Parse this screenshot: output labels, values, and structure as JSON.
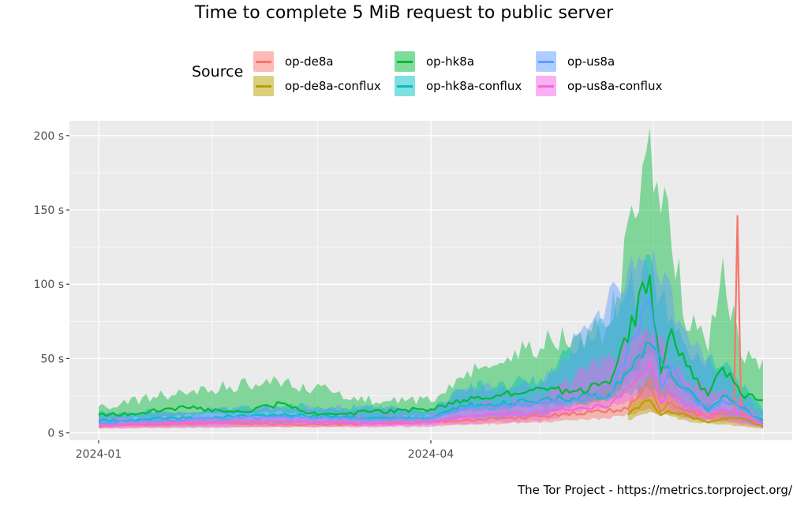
{
  "chart_data": {
    "type": "line",
    "title": "Time to complete 5 MiB request to public server",
    "legend_title": "Source",
    "legend_position": "top",
    "caption": "The Tor Project - https://metrics.torproject.org/",
    "xlabel": "",
    "ylabel": "",
    "x_ticks": [
      {
        "date": "2024-01-01",
        "label": "2024-01"
      },
      {
        "date": "2024-04-01",
        "label": "2024-04"
      }
    ],
    "x_range": [
      "2023-12-24",
      "2024-07-09"
    ],
    "y_ticks": [
      0,
      50,
      100,
      150,
      200
    ],
    "y_tick_suffix": " s",
    "ylim": [
      -5,
      210
    ],
    "grid": true,
    "series_note": "Each series: median time (line) with 25th-75th percentile band; values in seconds; x in days starting 2024-01-01",
    "series": [
      {
        "name": "op-de8a",
        "color": "#F8766D",
        "start_date": "2024-01-01",
        "end_date": "2024-07-01",
        "points": [
          [
            "2024-01-01",
            4.5
          ],
          [
            "2024-01-15",
            5.5
          ],
          [
            "2024-02-01",
            6.5
          ],
          [
            "2024-02-15",
            6
          ],
          [
            "2024-03-01",
            5.5
          ],
          [
            "2024-03-15",
            6
          ],
          [
            "2024-04-01",
            7
          ],
          [
            "2024-04-15",
            9
          ],
          [
            "2024-05-01",
            11
          ],
          [
            "2024-05-15",
            14
          ],
          [
            "2024-05-25",
            16
          ],
          [
            "2024-05-31",
            35
          ],
          [
            "2024-06-03",
            14
          ],
          [
            "2024-06-05",
            20
          ],
          [
            "2024-06-10",
            15
          ],
          [
            "2024-06-16",
            10
          ],
          [
            "2024-06-20",
            13
          ],
          [
            "2024-06-23",
            14
          ],
          [
            "2024-06-24",
            146
          ],
          [
            "2024-06-25",
            14
          ],
          [
            "2024-07-01",
            8
          ]
        ],
        "band": [
          [
            "2024-01-01",
            3,
            7
          ],
          [
            "2024-02-01",
            4,
            9
          ],
          [
            "2024-03-01",
            4,
            8
          ],
          [
            "2024-04-01",
            5,
            10
          ],
          [
            "2024-05-01",
            7,
            15
          ],
          [
            "2024-05-20",
            10,
            30
          ],
          [
            "2024-05-31",
            15,
            65
          ],
          [
            "2024-06-10",
            10,
            22
          ],
          [
            "2024-07-01",
            5,
            12
          ]
        ]
      },
      {
        "name": "op-de8a-conflux",
        "color": "#B79F00",
        "start_date": "2024-05-25",
        "end_date": "2024-07-01",
        "points": [
          [
            "2024-05-25",
            12
          ],
          [
            "2024-05-31",
            22
          ],
          [
            "2024-06-03",
            12
          ],
          [
            "2024-06-05",
            15
          ],
          [
            "2024-06-10",
            12
          ],
          [
            "2024-06-16",
            7
          ],
          [
            "2024-06-20",
            10
          ],
          [
            "2024-06-25",
            10
          ],
          [
            "2024-07-01",
            4
          ]
        ],
        "band": [
          [
            "2024-05-25",
            8,
            18
          ],
          [
            "2024-05-31",
            14,
            40
          ],
          [
            "2024-06-10",
            8,
            18
          ],
          [
            "2024-07-01",
            3,
            8
          ]
        ]
      },
      {
        "name": "op-hk8a",
        "color": "#00BA38",
        "start_date": "2024-01-01",
        "end_date": "2024-07-01",
        "points": [
          [
            "2024-01-01",
            12
          ],
          [
            "2024-01-10",
            13
          ],
          [
            "2024-01-25",
            17
          ],
          [
            "2024-02-10",
            14
          ],
          [
            "2024-02-20",
            20
          ],
          [
            "2024-03-01",
            12
          ],
          [
            "2024-03-15",
            14
          ],
          [
            "2024-04-01",
            16
          ],
          [
            "2024-04-10",
            22
          ],
          [
            "2024-04-20",
            25
          ],
          [
            "2024-05-01",
            30
          ],
          [
            "2024-05-10",
            28
          ],
          [
            "2024-05-20",
            33
          ],
          [
            "2024-05-31",
            106
          ],
          [
            "2024-06-03",
            40
          ],
          [
            "2024-06-06",
            70
          ],
          [
            "2024-06-10",
            45
          ],
          [
            "2024-06-16",
            25
          ],
          [
            "2024-06-20",
            44
          ],
          [
            "2024-06-25",
            26
          ],
          [
            "2024-07-01",
            22
          ]
        ],
        "band": [
          [
            "2024-01-01",
            9,
            17
          ],
          [
            "2024-01-25",
            12,
            28
          ],
          [
            "2024-02-20",
            14,
            35
          ],
          [
            "2024-03-15",
            10,
            22
          ],
          [
            "2024-04-01",
            12,
            22
          ],
          [
            "2024-04-10",
            14,
            40
          ],
          [
            "2024-05-01",
            18,
            60
          ],
          [
            "2024-05-20",
            22,
            70
          ],
          [
            "2024-05-31",
            55,
            200
          ],
          [
            "2024-06-06",
            35,
            130
          ],
          [
            "2024-06-10",
            25,
            80
          ],
          [
            "2024-06-16",
            15,
            60
          ],
          [
            "2024-06-20",
            25,
            105
          ],
          [
            "2024-06-25",
            15,
            55
          ],
          [
            "2024-07-01",
            12,
            45
          ]
        ]
      },
      {
        "name": "op-hk8a-conflux",
        "color": "#00BFC4",
        "start_date": "2024-01-01",
        "end_date": "2024-07-01",
        "points": [
          [
            "2024-01-01",
            8
          ],
          [
            "2024-01-25",
            10
          ],
          [
            "2024-02-20",
            12
          ],
          [
            "2024-03-15",
            10
          ],
          [
            "2024-04-01",
            10
          ],
          [
            "2024-04-10",
            18
          ],
          [
            "2024-05-01",
            22
          ],
          [
            "2024-05-20",
            26
          ],
          [
            "2024-05-31",
            60
          ],
          [
            "2024-06-06",
            38
          ],
          [
            "2024-06-10",
            30
          ],
          [
            "2024-06-16",
            15
          ],
          [
            "2024-06-20",
            25
          ],
          [
            "2024-06-25",
            17
          ],
          [
            "2024-07-01",
            8
          ]
        ],
        "band": [
          [
            "2024-01-01",
            5,
            13
          ],
          [
            "2024-02-20",
            7,
            18
          ],
          [
            "2024-04-01",
            7,
            16
          ],
          [
            "2024-04-10",
            10,
            30
          ],
          [
            "2024-05-01",
            12,
            35
          ],
          [
            "2024-05-31",
            30,
            110
          ],
          [
            "2024-06-10",
            18,
            55
          ],
          [
            "2024-06-20",
            14,
            45
          ],
          [
            "2024-07-01",
            5,
            15
          ]
        ]
      },
      {
        "name": "op-us8a",
        "color": "#619CFF",
        "start_date": "2024-01-01",
        "end_date": "2024-07-01",
        "points": [
          [
            "2024-01-01",
            7
          ],
          [
            "2024-01-25",
            9
          ],
          [
            "2024-02-20",
            11
          ],
          [
            "2024-03-15",
            9
          ],
          [
            "2024-04-01",
            10
          ],
          [
            "2024-04-10",
            16
          ],
          [
            "2024-05-01",
            20
          ],
          [
            "2024-05-20",
            24
          ],
          [
            "2024-05-31",
            90
          ],
          [
            "2024-06-03",
            30
          ],
          [
            "2024-06-06",
            45
          ],
          [
            "2024-06-10",
            28
          ],
          [
            "2024-06-16",
            14
          ],
          [
            "2024-06-20",
            22
          ],
          [
            "2024-06-25",
            16
          ],
          [
            "2024-07-01",
            6
          ]
        ],
        "band": [
          [
            "2024-01-01",
            4,
            12
          ],
          [
            "2024-02-20",
            6,
            18
          ],
          [
            "2024-04-01",
            6,
            15
          ],
          [
            "2024-04-10",
            9,
            28
          ],
          [
            "2024-05-01",
            11,
            33
          ],
          [
            "2024-05-31",
            40,
            120
          ],
          [
            "2024-06-06",
            25,
            90
          ],
          [
            "2024-06-10",
            15,
            70
          ],
          [
            "2024-06-20",
            12,
            40
          ],
          [
            "2024-07-01",
            4,
            14
          ]
        ]
      },
      {
        "name": "op-us8a-conflux",
        "color": "#F564E3",
        "start_date": "2024-01-01",
        "end_date": "2024-07-01",
        "points": [
          [
            "2024-01-01",
            5
          ],
          [
            "2024-01-25",
            7
          ],
          [
            "2024-02-20",
            8
          ],
          [
            "2024-03-15",
            6
          ],
          [
            "2024-04-01",
            7
          ],
          [
            "2024-04-10",
            11
          ],
          [
            "2024-05-01",
            14
          ],
          [
            "2024-05-20",
            18
          ],
          [
            "2024-05-31",
            48
          ],
          [
            "2024-06-03",
            20
          ],
          [
            "2024-06-06",
            28
          ],
          [
            "2024-06-10",
            18
          ],
          [
            "2024-06-16",
            10
          ],
          [
            "2024-06-20",
            16
          ],
          [
            "2024-06-25",
            12
          ],
          [
            "2024-07-01",
            5
          ]
        ],
        "band": [
          [
            "2024-01-01",
            3,
            9
          ],
          [
            "2024-02-20",
            4,
            12
          ],
          [
            "2024-04-01",
            4,
            11
          ],
          [
            "2024-04-10",
            6,
            18
          ],
          [
            "2024-05-01",
            8,
            22
          ],
          [
            "2024-05-31",
            25,
            70
          ],
          [
            "2024-06-10",
            10,
            35
          ],
          [
            "2024-06-20",
            8,
            28
          ],
          [
            "2024-07-01",
            3,
            9
          ]
        ]
      }
    ]
  }
}
